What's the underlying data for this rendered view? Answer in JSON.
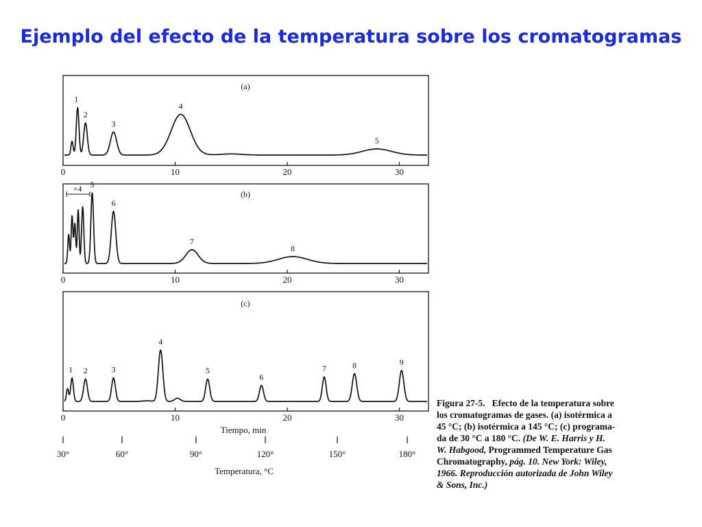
{
  "slide_title": "Ejemplo del efecto de la temperatura sobre los cromatogramas",
  "caption": {
    "figure_label": "Figura 27-5.",
    "line1": "Efecto de la temperatura sobre",
    "line2": "los cromatogramas de gases. (a) isotérmica a",
    "line3": "45 °C; (b) isotérmica a 145 °C; (c) programa-",
    "line4a": "da de 30 °C a 180 °C.",
    "line4b": "(De W. E. Harris y H.",
    "line5a": "W. Habgood,",
    "line5b": "Programmed Temperature Gas",
    "line6a": "Chromatography,",
    "line6b": "pág. 10. New York: Wiley,",
    "line7": "1966. Reproducción autorizada de John Wiley",
    "line8": "& Sons, Inc.)"
  },
  "chart_data": [
    {
      "type": "line",
      "panel_label": "(a)",
      "xlim": [
        0,
        32
      ],
      "x_ticks": [
        0,
        10,
        20,
        30
      ],
      "x_tick_labels": [
        "0",
        "10",
        "20",
        "30"
      ],
      "peaks": [
        {
          "label": "",
          "t": 0.8,
          "height": 0.18,
          "width": 0.1
        },
        {
          "label": "1",
          "t": 1.3,
          "height": 0.62,
          "width": 0.12
        },
        {
          "label": "2",
          "t": 2.0,
          "height": 0.42,
          "width": 0.16
        },
        {
          "label": "3",
          "t": 4.5,
          "height": 0.3,
          "width": 0.28
        },
        {
          "label": "4",
          "t": 10.5,
          "height": 0.53,
          "width": 0.85
        },
        {
          "label": "5",
          "t": 28.0,
          "height": 0.08,
          "width": 1.3
        }
      ],
      "bumps": [
        {
          "t": 15.0,
          "height": 0.015,
          "width": 1.0
        }
      ]
    },
    {
      "type": "line",
      "panel_label": "(b)",
      "xlim": [
        0,
        32
      ],
      "x_ticks": [
        0,
        10,
        20,
        30
      ],
      "x_tick_labels": [
        "0",
        "10",
        "20",
        "30"
      ],
      "annotation": "×4",
      "peaks": [
        {
          "label": "",
          "t": 0.5,
          "height": 0.38,
          "width": 0.08
        },
        {
          "label": "",
          "t": 0.8,
          "height": 0.62,
          "width": 0.08
        },
        {
          "label": "",
          "t": 1.05,
          "height": 0.52,
          "width": 0.08
        },
        {
          "label": "",
          "t": 1.35,
          "height": 0.7,
          "width": 0.08
        },
        {
          "label": "",
          "t": 1.75,
          "height": 0.74,
          "width": 0.1
        },
        {
          "label": "5",
          "t": 2.6,
          "height": 0.92,
          "width": 0.12
        },
        {
          "label": "6",
          "t": 4.5,
          "height": 0.68,
          "width": 0.2
        },
        {
          "label": "7",
          "t": 11.5,
          "height": 0.18,
          "width": 0.55
        },
        {
          "label": "8",
          "t": 20.5,
          "height": 0.09,
          "width": 1.3
        }
      ],
      "bumps": []
    },
    {
      "type": "line",
      "panel_label": "(c)",
      "xlim": [
        0,
        32
      ],
      "x_ticks": [
        0,
        10,
        20,
        30
      ],
      "x_tick_labels": [
        "0",
        "10",
        "20",
        "30"
      ],
      "xlabel": "Tiempo, min",
      "peaks": [
        {
          "label": "",
          "t": 0.4,
          "height": 0.12,
          "width": 0.1
        },
        {
          "label": "1",
          "t": 0.8,
          "height": 0.22,
          "width": 0.12
        },
        {
          "label": "2",
          "t": 2.0,
          "height": 0.21,
          "width": 0.17
        },
        {
          "label": "3",
          "t": 4.5,
          "height": 0.22,
          "width": 0.17
        },
        {
          "label": "4",
          "t": 8.7,
          "height": 0.48,
          "width": 0.2
        },
        {
          "label": "",
          "t": 10.2,
          "height": 0.03,
          "width": 0.25
        },
        {
          "label": "5",
          "t": 12.9,
          "height": 0.21,
          "width": 0.18
        },
        {
          "label": "6",
          "t": 17.7,
          "height": 0.15,
          "width": 0.18
        },
        {
          "label": "7",
          "t": 23.3,
          "height": 0.23,
          "width": 0.17
        },
        {
          "label": "8",
          "t": 26.0,
          "height": 0.26,
          "width": 0.2
        },
        {
          "label": "9",
          "t": 30.2,
          "height": 0.29,
          "width": 0.2
        }
      ],
      "bumps": [
        {
          "t": 7.5,
          "height": 0.006,
          "width": 0.4
        }
      ],
      "temperature_axis": {
        "label": "Temperatura, °C",
        "ticks": [
          "30°",
          "60°",
          "90°",
          "120°",
          "150°",
          "180°"
        ],
        "tick_times": [
          0,
          5,
          10,
          15,
          20,
          25
        ]
      }
    }
  ]
}
